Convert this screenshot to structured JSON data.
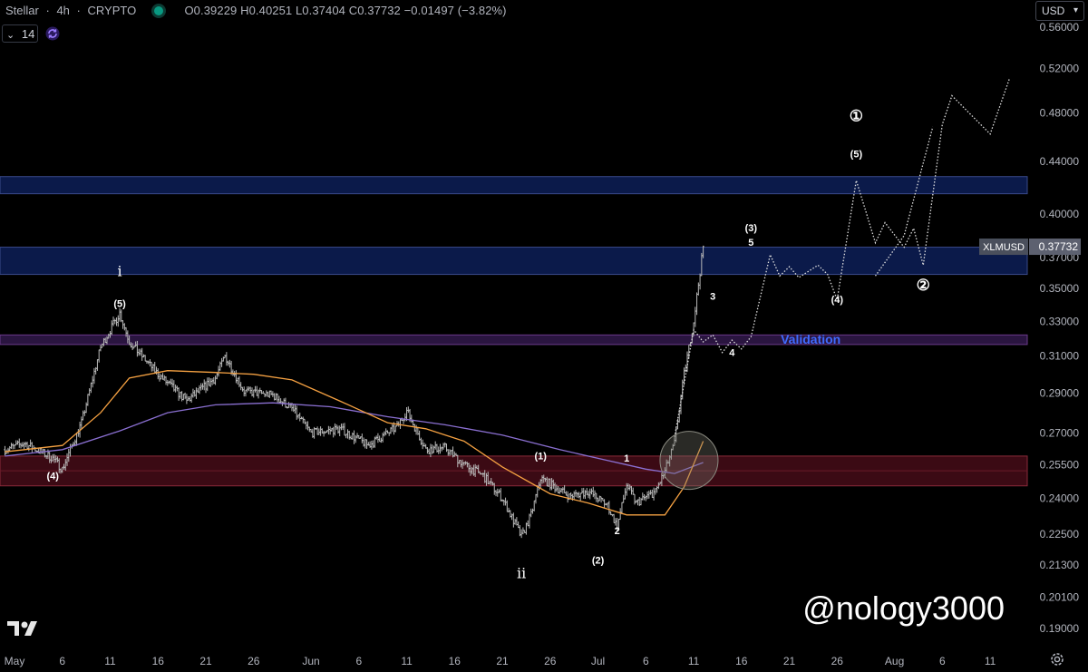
{
  "header": {
    "symbol": "Stellar",
    "interval": "4h",
    "exchange": "CRYPTO",
    "sep": "·",
    "ohlc": "O0.39229 H0.40251 L0.37404 C0.37732 −0.01497 (−3.82%)",
    "ma_length": "14",
    "currency": "USD"
  },
  "colors": {
    "background": "#000000",
    "candle": "#b9b9b9",
    "sma_fast": "#f5a142",
    "sma_slow": "#8a6fd1",
    "zone_blue": "#0b1a4a",
    "zone_purple": "#2a1540",
    "zone_red": "#3b0a14",
    "projection": "#e0e0e0",
    "price_tag": "#4a4f5c",
    "validation": "#3f6bff"
  },
  "price_tag": {
    "label": "XLMUSD",
    "value": "0.37732"
  },
  "watermark": "@nology3000",
  "chart_data": {
    "type": "candlestick",
    "title": "Stellar · 4h · CRYPTO",
    "y_scale": "log",
    "ylim": [
      0.183,
      0.585
    ],
    "y_ticks": [
      "0.56000",
      "0.52000",
      "0.48000",
      "0.44000",
      "0.40000",
      "0.37000",
      "0.35000",
      "0.33000",
      "0.31000",
      "0.29000",
      "0.27000",
      "0.25500",
      "0.24000",
      "0.22500",
      "0.21300",
      "0.20100",
      "0.19000"
    ],
    "x_ticks": [
      "May",
      "6",
      "11",
      "16",
      "21",
      "26",
      "Jun",
      "6",
      "11",
      "16",
      "21",
      "26",
      "Jul",
      "6",
      "11",
      "16",
      "21",
      "26",
      "Aug",
      "6",
      "11"
    ],
    "x_tick_dates": [
      "2024-05-01",
      "2024-05-06",
      "2024-05-11",
      "2024-05-16",
      "2024-05-21",
      "2024-05-26",
      "2024-06-01",
      "2024-06-06",
      "2024-06-11",
      "2024-06-16",
      "2024-06-21",
      "2024-06-26",
      "2024-07-01",
      "2024-07-06",
      "2024-07-11",
      "2024-07-16",
      "2024-07-21",
      "2024-07-26",
      "2024-08-01",
      "2024-08-06",
      "2024-08-11"
    ],
    "price_path": [
      {
        "date": "2024-04-30",
        "price": 0.262
      },
      {
        "date": "2024-05-02",
        "price": 0.265
      },
      {
        "date": "2024-05-05",
        "price": 0.258
      },
      {
        "date": "2024-05-06",
        "price": 0.253
      },
      {
        "date": "2024-05-08",
        "price": 0.275
      },
      {
        "date": "2024-05-10",
        "price": 0.315
      },
      {
        "date": "2024-05-12",
        "price": 0.335
      },
      {
        "date": "2024-05-13",
        "price": 0.318
      },
      {
        "date": "2024-05-16",
        "price": 0.3
      },
      {
        "date": "2024-05-19",
        "price": 0.286
      },
      {
        "date": "2024-05-22",
        "price": 0.298
      },
      {
        "date": "2024-05-23",
        "price": 0.31
      },
      {
        "date": "2024-05-25",
        "price": 0.291
      },
      {
        "date": "2024-05-28",
        "price": 0.289
      },
      {
        "date": "2024-05-30",
        "price": 0.282
      },
      {
        "date": "2024-06-01",
        "price": 0.27
      },
      {
        "date": "2024-06-04",
        "price": 0.272
      },
      {
        "date": "2024-06-07",
        "price": 0.264
      },
      {
        "date": "2024-06-10",
        "price": 0.273
      },
      {
        "date": "2024-06-11",
        "price": 0.281
      },
      {
        "date": "2024-06-13",
        "price": 0.262
      },
      {
        "date": "2024-06-15",
        "price": 0.263
      },
      {
        "date": "2024-06-17",
        "price": 0.255
      },
      {
        "date": "2024-06-19",
        "price": 0.25
      },
      {
        "date": "2024-06-21",
        "price": 0.24
      },
      {
        "date": "2024-06-23",
        "price": 0.224
      },
      {
        "date": "2024-06-24",
        "price": 0.233
      },
      {
        "date": "2024-06-25",
        "price": 0.249
      },
      {
        "date": "2024-06-28",
        "price": 0.241
      },
      {
        "date": "2024-06-30",
        "price": 0.243
      },
      {
        "date": "2024-07-02",
        "price": 0.237
      },
      {
        "date": "2024-07-03",
        "price": 0.228
      },
      {
        "date": "2024-07-04",
        "price": 0.246
      },
      {
        "date": "2024-07-05",
        "price": 0.238
      },
      {
        "date": "2024-07-07",
        "price": 0.243
      },
      {
        "date": "2024-07-08",
        "price": 0.252
      },
      {
        "date": "2024-07-09",
        "price": 0.265
      },
      {
        "date": "2024-07-10",
        "price": 0.3
      },
      {
        "date": "2024-07-11",
        "price": 0.33
      },
      {
        "date": "2024-07-12",
        "price": 0.377
      }
    ],
    "sma_fast": [
      {
        "date": "2024-04-30",
        "price": 0.261
      },
      {
        "date": "2024-05-06",
        "price": 0.264
      },
      {
        "date": "2024-05-10",
        "price": 0.28
      },
      {
        "date": "2024-05-13",
        "price": 0.298
      },
      {
        "date": "2024-05-17",
        "price": 0.302
      },
      {
        "date": "2024-05-22",
        "price": 0.301
      },
      {
        "date": "2024-05-26",
        "price": 0.3
      },
      {
        "date": "2024-05-30",
        "price": 0.297
      },
      {
        "date": "2024-06-04",
        "price": 0.286
      },
      {
        "date": "2024-06-09",
        "price": 0.275
      },
      {
        "date": "2024-06-13",
        "price": 0.272
      },
      {
        "date": "2024-06-17",
        "price": 0.266
      },
      {
        "date": "2024-06-21",
        "price": 0.254
      },
      {
        "date": "2024-06-26",
        "price": 0.242
      },
      {
        "date": "2024-06-30",
        "price": 0.238
      },
      {
        "date": "2024-07-04",
        "price": 0.233
      },
      {
        "date": "2024-07-08",
        "price": 0.233
      },
      {
        "date": "2024-07-10",
        "price": 0.245
      },
      {
        "date": "2024-07-12",
        "price": 0.266
      }
    ],
    "sma_slow": [
      {
        "date": "2024-04-30",
        "price": 0.259
      },
      {
        "date": "2024-05-06",
        "price": 0.262
      },
      {
        "date": "2024-05-12",
        "price": 0.271
      },
      {
        "date": "2024-05-17",
        "price": 0.28
      },
      {
        "date": "2024-05-22",
        "price": 0.284
      },
      {
        "date": "2024-05-28",
        "price": 0.285
      },
      {
        "date": "2024-06-03",
        "price": 0.283
      },
      {
        "date": "2024-06-09",
        "price": 0.278
      },
      {
        "date": "2024-06-15",
        "price": 0.274
      },
      {
        "date": "2024-06-21",
        "price": 0.269
      },
      {
        "date": "2024-06-27",
        "price": 0.262
      },
      {
        "date": "2024-07-02",
        "price": 0.257
      },
      {
        "date": "2024-07-06",
        "price": 0.253
      },
      {
        "date": "2024-07-09",
        "price": 0.251
      },
      {
        "date": "2024-07-12",
        "price": 0.256
      }
    ],
    "projection_path": [
      {
        "date": "2024-07-09",
        "price": 0.268
      },
      {
        "date": "2024-07-11",
        "price": 0.325
      },
      {
        "date": "2024-07-12",
        "price": 0.318
      },
      {
        "date": "2024-07-13",
        "price": 0.322
      },
      {
        "date": "2024-07-14",
        "price": 0.312
      },
      {
        "date": "2024-07-15",
        "price": 0.319
      },
      {
        "date": "2024-07-16",
        "price": 0.314
      },
      {
        "date": "2024-07-17",
        "price": 0.321
      },
      {
        "date": "2024-07-19",
        "price": 0.372
      },
      {
        "date": "2024-07-20",
        "price": 0.358
      },
      {
        "date": "2024-07-21",
        "price": 0.364
      },
      {
        "date": "2024-07-22",
        "price": 0.357
      },
      {
        "date": "2024-07-24",
        "price": 0.365
      },
      {
        "date": "2024-07-25",
        "price": 0.359
      },
      {
        "date": "2024-07-26",
        "price": 0.343
      },
      {
        "date": "2024-07-28",
        "price": 0.425
      },
      {
        "date": "2024-07-29",
        "price": 0.402
      },
      {
        "date": "2024-07-30",
        "price": 0.38
      },
      {
        "date": "2024-07-31",
        "price": 0.394
      },
      {
        "date": "2024-08-02",
        "price": 0.377
      },
      {
        "date": "2024-08-03",
        "price": 0.39
      },
      {
        "date": "2024-08-04",
        "price": 0.365
      },
      {
        "date": "2024-08-06",
        "price": 0.47
      },
      {
        "date": "2024-08-07",
        "price": 0.495
      },
      {
        "date": "2024-08-11",
        "price": 0.462
      },
      {
        "date": "2024-08-13",
        "price": 0.51
      }
    ],
    "projection_path2": [
      {
        "date": "2024-07-30",
        "price": 0.358
      },
      {
        "date": "2024-08-02",
        "price": 0.385
      },
      {
        "date": "2024-08-05",
        "price": 0.468
      }
    ],
    "zones": [
      {
        "name": "resistance-zone-upper",
        "color": "blue",
        "from": 0.415,
        "to": 0.428
      },
      {
        "name": "resistance-zone-lower",
        "color": "blue",
        "from": 0.359,
        "to": 0.377
      },
      {
        "name": "validation-zone",
        "color": "purple",
        "from": 0.3165,
        "to": 0.322
      },
      {
        "name": "support-zone",
        "color": "red",
        "from": 0.2455,
        "to": 0.259
      }
    ],
    "wave_labels": [
      {
        "text": "i",
        "date": "2024-05-12",
        "price": 0.358,
        "style": "roman"
      },
      {
        "text": "(5)",
        "date": "2024-05-12",
        "price": 0.3385,
        "style": "small"
      },
      {
        "text": "(4)",
        "date": "2024-05-05",
        "price": 0.2485,
        "style": "small"
      },
      {
        "text": "(1)",
        "date": "2024-06-25",
        "price": 0.2575,
        "style": "small"
      },
      {
        "text": "1",
        "date": "2024-07-04",
        "price": 0.2565,
        "style": "small"
      },
      {
        "text": "2",
        "date": "2024-07-03",
        "price": 0.225,
        "style": "small"
      },
      {
        "text": "(2)",
        "date": "2024-07-01",
        "price": 0.2135,
        "style": "small"
      },
      {
        "text": "ii",
        "date": "2024-06-23",
        "price": 0.208,
        "style": "roman"
      },
      {
        "text": "3",
        "date": "2024-07-13",
        "price": 0.343,
        "style": "small"
      },
      {
        "text": "4",
        "date": "2024-07-15",
        "price": 0.31,
        "style": "small"
      },
      {
        "text": "(3)",
        "date": "2024-07-17",
        "price": 0.388,
        "style": "small"
      },
      {
        "text": "5",
        "date": "2024-07-17",
        "price": 0.378,
        "style": "small"
      },
      {
        "text": "(4)",
        "date": "2024-07-26",
        "price": 0.341,
        "style": "small"
      },
      {
        "text": "(5)",
        "date": "2024-07-28",
        "price": 0.443,
        "style": "small"
      },
      {
        "text": "①",
        "date": "2024-07-28",
        "price": 0.473,
        "style": "circle"
      },
      {
        "text": "②",
        "date": "2024-08-04",
        "price": 0.349,
        "style": "circle"
      }
    ],
    "annotations": [
      {
        "text": "Validation",
        "date": "2024-07-22",
        "price": 0.318
      }
    ],
    "highlight_circle": {
      "date": "2024-07-09",
      "price": 0.257
    }
  }
}
